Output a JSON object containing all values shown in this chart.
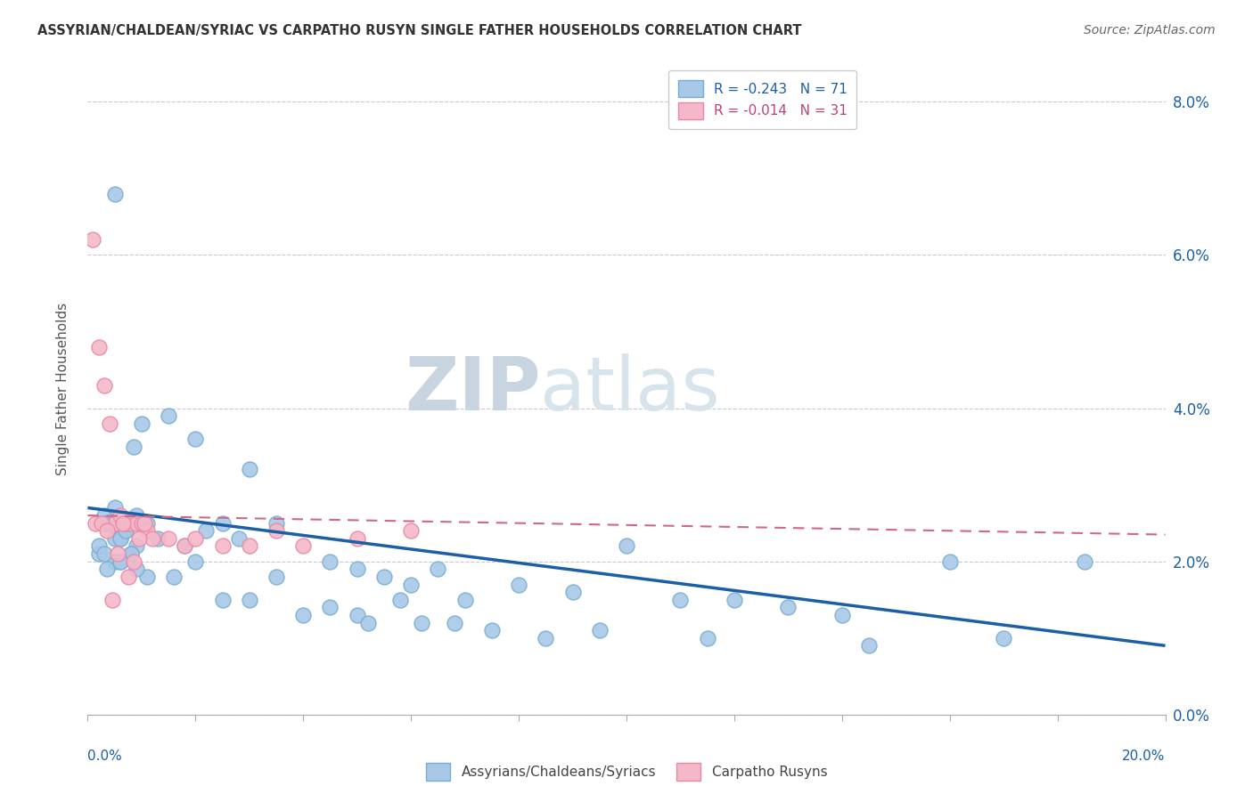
{
  "title": "ASSYRIAN/CHALDEAN/SYRIAC VS CARPATHO RUSYN SINGLE FATHER HOUSEHOLDS CORRELATION CHART",
  "source": "Source: ZipAtlas.com",
  "ylabel": "Single Father Households",
  "ytick_vals": [
    0.0,
    2.0,
    4.0,
    6.0,
    8.0
  ],
  "xlim": [
    0.0,
    20.0
  ],
  "ylim": [
    0.0,
    8.5
  ],
  "legend_blue_label": "R = -0.243   N = 71",
  "legend_pink_label": "R = -0.014   N = 31",
  "blue_color": "#a8c8e8",
  "pink_color": "#f4b8c8",
  "blue_edge_color": "#7aaed0",
  "pink_edge_color": "#e888a8",
  "blue_line_color": "#1a5fa8",
  "pink_line_color": "#d06888",
  "watermark_zip": "ZIP",
  "watermark_atlas": "atlas",
  "blue_scatter_x": [
    0.5,
    1.0,
    0.3,
    0.4,
    0.6,
    0.9,
    1.1,
    0.2,
    0.7,
    0.5,
    0.3,
    0.6,
    0.35,
    0.8,
    0.9,
    0.5,
    0.85,
    1.5,
    2.0,
    2.5,
    3.0,
    3.5,
    2.8,
    2.2,
    1.8,
    4.5,
    5.0,
    5.5,
    6.0,
    6.5,
    7.0,
    8.0,
    9.0,
    10.0,
    11.0,
    12.0,
    13.0,
    14.0,
    16.0,
    18.5,
    0.4,
    0.5,
    0.6,
    0.7,
    0.3,
    0.8,
    1.0,
    1.1,
    1.3,
    1.6,
    2.0,
    2.5,
    3.0,
    3.5,
    4.0,
    4.5,
    5.0,
    5.2,
    5.8,
    6.2,
    6.8,
    7.5,
    8.5,
    9.5,
    11.5,
    14.5,
    17.0,
    0.2,
    0.3,
    0.6,
    0.9
  ],
  "blue_scatter_y": [
    6.8,
    3.8,
    2.6,
    2.5,
    2.3,
    2.2,
    2.5,
    2.1,
    2.4,
    2.0,
    2.5,
    2.0,
    1.9,
    2.1,
    2.6,
    2.3,
    3.5,
    3.9,
    3.6,
    2.5,
    3.2,
    2.5,
    2.3,
    2.4,
    2.2,
    2.0,
    1.9,
    1.8,
    1.7,
    1.9,
    1.5,
    1.7,
    1.6,
    2.2,
    1.5,
    1.5,
    1.4,
    1.3,
    2.0,
    2.0,
    2.5,
    2.7,
    2.3,
    2.4,
    2.5,
    2.1,
    2.5,
    1.8,
    2.3,
    1.8,
    2.0,
    1.5,
    1.5,
    1.8,
    1.3,
    1.4,
    1.3,
    1.2,
    1.5,
    1.2,
    1.2,
    1.1,
    1.0,
    1.1,
    1.0,
    0.9,
    1.0,
    2.2,
    2.1,
    2.0,
    1.9
  ],
  "pink_scatter_x": [
    0.1,
    0.2,
    0.3,
    0.4,
    0.5,
    0.6,
    0.7,
    0.8,
    0.9,
    1.0,
    1.1,
    1.2,
    1.5,
    1.8,
    2.0,
    2.5,
    3.0,
    3.5,
    4.0,
    5.0,
    6.0,
    0.15,
    0.25,
    0.35,
    0.45,
    0.55,
    0.65,
    0.75,
    0.85,
    0.95,
    1.05
  ],
  "pink_scatter_y": [
    6.2,
    4.8,
    4.3,
    3.8,
    2.5,
    2.6,
    2.5,
    2.5,
    2.5,
    2.5,
    2.4,
    2.3,
    2.3,
    2.2,
    2.3,
    2.2,
    2.2,
    2.4,
    2.2,
    2.3,
    2.4,
    2.5,
    2.5,
    2.4,
    1.5,
    2.1,
    2.5,
    1.8,
    2.0,
    2.3,
    2.5
  ],
  "blue_trend_x": [
    0.0,
    20.0
  ],
  "blue_trend_y": [
    2.7,
    0.9
  ],
  "pink_trend_x": [
    0.0,
    20.0
  ],
  "pink_trend_y": [
    2.6,
    2.35
  ],
  "bottom_legend_blue": "Assyrians/Chaldeans/Syriacs",
  "bottom_legend_pink": "Carpatho Rusyns"
}
